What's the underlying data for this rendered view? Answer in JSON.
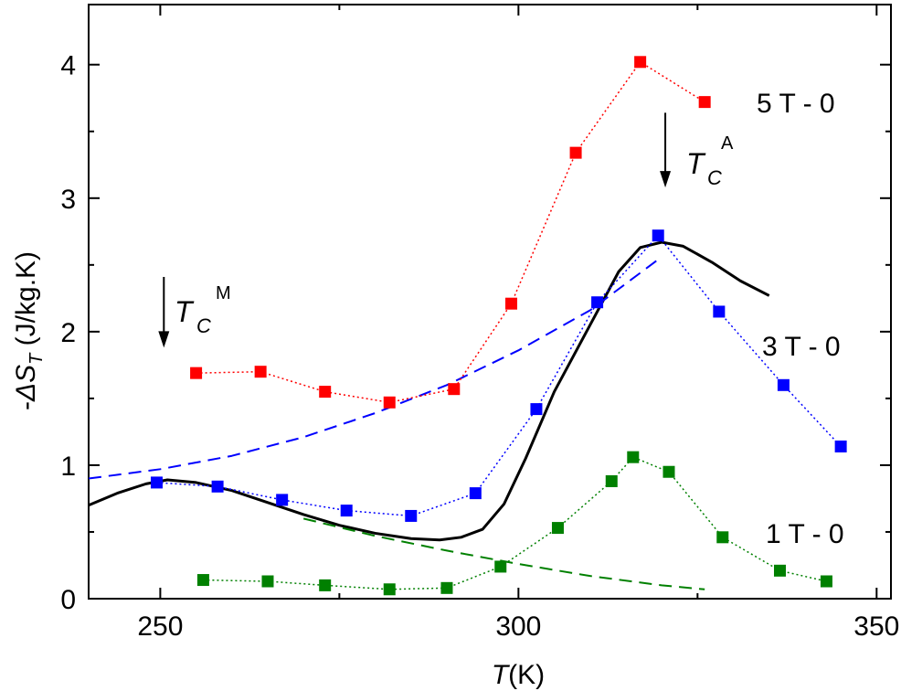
{
  "chart_data": {
    "type": "scatter",
    "title": "",
    "xlabel": "T(K)",
    "ylabel": "-ΔS_T (J/kg.K)",
    "xlabel_parts": {
      "var": "T",
      "unit": "(K)"
    },
    "ylabel_parts": {
      "prefix": "-",
      "symbol": "ΔS",
      "sub": "T",
      "unit": " (J/kg.K)"
    },
    "xlim": [
      240,
      352
    ],
    "ylim": [
      0,
      4.45
    ],
    "xticks": [
      250,
      300,
      350
    ],
    "yticks": [
      0,
      1,
      2,
      3,
      4
    ],
    "series": [
      {
        "name": "5 T - 0",
        "color": "#ff0000",
        "points": [
          [
            255,
            1.69
          ],
          [
            264,
            1.7
          ],
          [
            273,
            1.55
          ],
          [
            282,
            1.47
          ],
          [
            291,
            1.57
          ],
          [
            299,
            2.21
          ],
          [
            308,
            3.34
          ],
          [
            317,
            4.02
          ],
          [
            326,
            3.72
          ]
        ]
      },
      {
        "name": "3 T - 0",
        "color": "#0000ff",
        "points": [
          [
            249.5,
            0.87
          ],
          [
            258,
            0.84
          ],
          [
            267,
            0.74
          ],
          [
            276,
            0.66
          ],
          [
            285,
            0.62
          ],
          [
            294,
            0.79
          ],
          [
            302.5,
            1.42
          ],
          [
            311,
            2.22
          ],
          [
            319.5,
            2.72
          ],
          [
            328,
            2.15
          ],
          [
            337,
            1.6
          ],
          [
            345,
            1.14
          ]
        ]
      },
      {
        "name": "1 T - 0",
        "color": "#008000",
        "points": [
          [
            256,
            0.14
          ],
          [
            265,
            0.13
          ],
          [
            273,
            0.1
          ],
          [
            282,
            0.07
          ],
          [
            290,
            0.08
          ],
          [
            297.5,
            0.24
          ],
          [
            305.5,
            0.53
          ],
          [
            313,
            0.88
          ],
          [
            316,
            1.06
          ],
          [
            321,
            0.95
          ],
          [
            328.5,
            0.46
          ],
          [
            336.5,
            0.21
          ],
          [
            343,
            0.13
          ]
        ]
      }
    ],
    "fit_curves": [
      {
        "name": "model-solid",
        "color": "#000000",
        "style": "solid",
        "points": [
          [
            240,
            0.7
          ],
          [
            244,
            0.79
          ],
          [
            248,
            0.86
          ],
          [
            251,
            0.89
          ],
          [
            255,
            0.87
          ],
          [
            260,
            0.81
          ],
          [
            265,
            0.72
          ],
          [
            270,
            0.63
          ],
          [
            275,
            0.55
          ],
          [
            280,
            0.49
          ],
          [
            285,
            0.45
          ],
          [
            289,
            0.44
          ],
          [
            292,
            0.46
          ],
          [
            295,
            0.52
          ],
          [
            298,
            0.71
          ],
          [
            301,
            1.05
          ],
          [
            305,
            1.55
          ],
          [
            310,
            2.05
          ],
          [
            314,
            2.45
          ],
          [
            317,
            2.63
          ],
          [
            320,
            2.67
          ],
          [
            323,
            2.64
          ],
          [
            327,
            2.52
          ],
          [
            331,
            2.38
          ],
          [
            335,
            2.27
          ]
        ]
      },
      {
        "name": "model-blue-dashed",
        "color": "#0000ff",
        "style": "dashed",
        "points": [
          [
            240,
            0.9
          ],
          [
            250,
            0.97
          ],
          [
            260,
            1.07
          ],
          [
            270,
            1.21
          ],
          [
            280,
            1.39
          ],
          [
            290,
            1.6
          ],
          [
            300,
            1.86
          ],
          [
            310,
            2.16
          ],
          [
            320,
            2.56
          ]
        ]
      },
      {
        "name": "model-green-dashed",
        "color": "#008000",
        "style": "dashed",
        "points": [
          [
            270,
            0.6
          ],
          [
            280,
            0.47
          ],
          [
            290,
            0.36
          ],
          [
            300,
            0.26
          ],
          [
            310,
            0.17
          ],
          [
            320,
            0.1
          ],
          [
            326,
            0.07
          ]
        ]
      }
    ],
    "annotations": [
      {
        "name": "Tc-M",
        "symbol": "T",
        "sub": "C",
        "sup": "M",
        "arrow_x": 250.5,
        "arrow_from": 2.41,
        "arrow_to": 1.88
      },
      {
        "name": "Tc-A",
        "symbol": "T",
        "sub": "C",
        "sup": "A",
        "arrow_x": 320.5,
        "arrow_from": 3.64,
        "arrow_to": 3.08
      }
    ]
  }
}
